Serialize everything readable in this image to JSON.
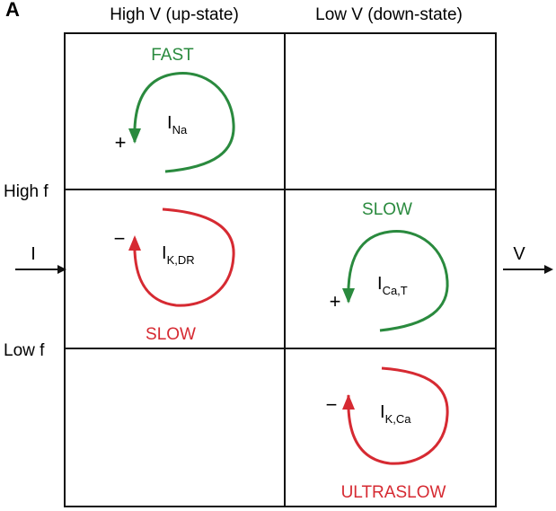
{
  "panel_letter": "A",
  "columns": {
    "left": "High V (up-state)",
    "right": "Low V (down-state)"
  },
  "rows": {
    "high": "High f",
    "low": "Low f"
  },
  "input_label": "I",
  "output_label": "V",
  "loops": [
    {
      "id": "na",
      "speed": "FAST",
      "current_main": "I",
      "current_sub": "Na",
      "sign": "+",
      "color": "#2a8a3e"
    },
    {
      "id": "kdr",
      "speed": "SLOW",
      "current_main": "I",
      "current_sub": "K,DR",
      "sign": "−",
      "color": "#d62a32"
    },
    {
      "id": "cat",
      "speed": "SLOW",
      "current_main": "I",
      "current_sub": "Ca,T",
      "sign": "+",
      "color": "#2a8a3e"
    },
    {
      "id": "kca",
      "speed": "ULTRASLOW",
      "current_main": "I",
      "current_sub": "K,Ca",
      "sign": "−",
      "color": "#d62a32"
    }
  ],
  "colors": {
    "green": "#2a8a3e",
    "red": "#d62a32",
    "ink": "#111111"
  }
}
